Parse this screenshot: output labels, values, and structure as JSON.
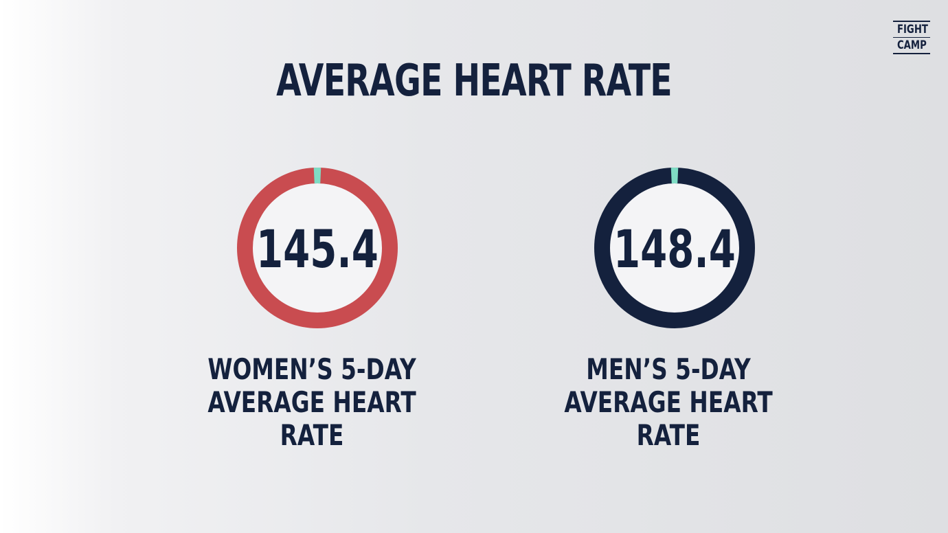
{
  "title": "AVERAGE HEART RATE",
  "logo": {
    "line1": "FIGHT",
    "line2": "CAMP"
  },
  "colors": {
    "navy": "#14213d",
    "red": "#c94c50",
    "mint": "#7fdcc4",
    "inner": "#f4f4f6"
  },
  "chart_data": [
    {
      "type": "pie",
      "title": "WOMEN’S 5-DAY AVERAGE HEART RATE",
      "value": 145.4,
      "ring_color": "#c94c50",
      "marker_color": "#7fdcc4"
    },
    {
      "type": "pie",
      "title": "MEN’S 5-DAY AVERAGE HEART RATE",
      "value": 148.4,
      "ring_color": "#14213d",
      "marker_color": "#7fdcc4"
    }
  ],
  "captions": {
    "women": {
      "line1": "WOMEN’S 5-DAY",
      "line2": "AVERAGE HEART RATE"
    },
    "men": {
      "line1": "MEN’S 5-DAY",
      "line2": "AVERAGE HEART RATE"
    }
  }
}
